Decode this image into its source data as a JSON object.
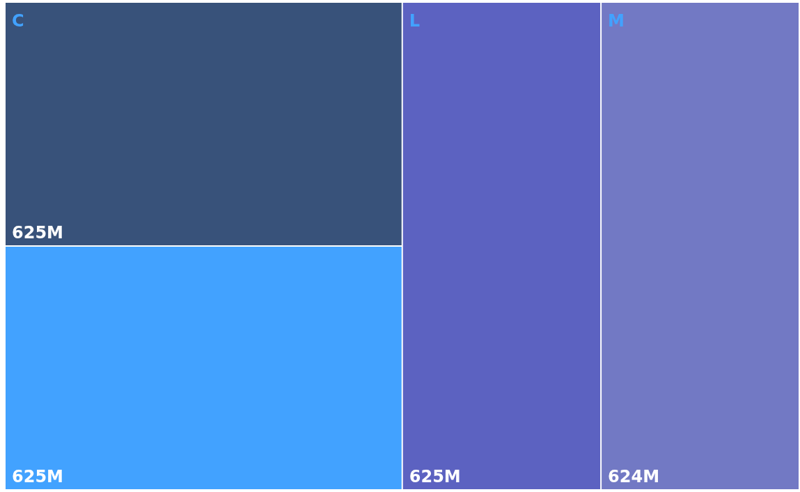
{
  "chart_data": {
    "type": "other",
    "categories": [
      "C",
      null,
      "L",
      "M"
    ],
    "values": [
      625,
      625,
      625,
      624
    ],
    "value_labels": [
      "625M",
      "625M",
      "625M",
      "624M"
    ],
    "colors": [
      "#38527a",
      "#42a2ff",
      "#5c62c1",
      "#7279c4"
    ]
  }
}
